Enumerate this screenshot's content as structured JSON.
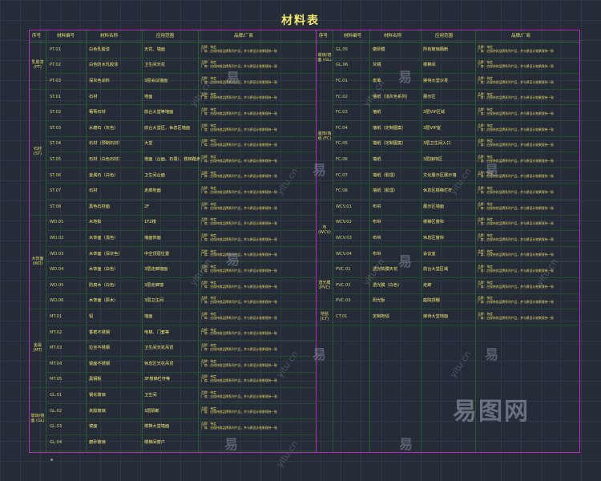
{
  "title": "材料表",
  "headers": {
    "no": "序号",
    "code": "材料编号",
    "name": "材料名称",
    "area": "应用范围",
    "brand": "品牌/厂商"
  },
  "left": {
    "categories": [
      {
        "label": "乳胶漆 (PT)",
        "top": 0
      },
      {
        "label": "石材 (ST)",
        "top": 1
      },
      {
        "label": "木饰面 (WD)",
        "top": 2
      },
      {
        "label": "金属 (MT)",
        "top": 3
      },
      {
        "label": "玻璃/镜面 (GL)",
        "top": 4
      }
    ],
    "rows": [
      {
        "code": "PT.01",
        "name": "白色乳胶漆",
        "area": "天花、墙面",
        "note1": "品牌：待定",
        "note2": "厂商：应保持其品牌系列产品，并与原设计效果保持一致"
      },
      {
        "code": "PT.02",
        "name": "白色防水乳胶漆",
        "area": "卫生间天花",
        "note1": "品牌：待定",
        "note2": "厂商：应保持其品牌系列产品，并与原设计效果保持一致"
      },
      {
        "code": "PT.03",
        "name": "深灰色涂料",
        "area": "3层会议墙面",
        "note1": "品牌：待定",
        "note2": "厂商：应保持其品牌系列产品，并与原设计效果保持一致"
      },
      {
        "code": "ST.01",
        "name": "石材",
        "area": "地面",
        "note1": "品牌：待定",
        "note2": "厂商：应保持其品牌系列产品，并与原设计效果保持一致"
      },
      {
        "code": "ST.02",
        "name": "葡萄石材",
        "area": "前台大堂等墙面",
        "note1": "品牌：待定",
        "note2": "厂商：应保持其品牌系列产品，并与原设计效果保持一致"
      },
      {
        "code": "ST.03",
        "name": "水磨石（灰色）",
        "area": "前台大堂区、休息区墙面",
        "note1": "品牌：待定",
        "note2": "厂商：应保持其品牌系列产品，并与原设计效果保持一致"
      },
      {
        "code": "ST.04",
        "name": "石材（预制石材）",
        "area": "大堂",
        "note1": "品牌：待定",
        "note2": "厂商：应保持其品牌系列产品，并与原设计效果保持一致"
      },
      {
        "code": "ST.05",
        "name": "石材（白色石材）",
        "area": "地面（台面、石膏）、楼梯踏步",
        "note1": "品牌：待定",
        "note2": "厂商：应保持其品牌系列产品，并与原设计效果保持一致"
      },
      {
        "code": "ST.06",
        "name": "金属石（白色）",
        "area": "卫生间台面",
        "note1": "品牌：待定",
        "note2": "厂商：应保持其品牌系列产品，并与原设计效果保持一致"
      },
      {
        "code": "ST.07",
        "name": "石材",
        "area": "走廊地面",
        "note1": "品牌：待定",
        "note2": "厂商：应保持其品牌系列产品，并与原设计效果保持一致"
      },
      {
        "code": "ST.08",
        "name": "黑色石材面",
        "area": "2F",
        "note1": "品牌：待定",
        "note2": "厂商：应保持其品牌系列产品，并与原设计效果保持一致"
      },
      {
        "code": "WD.01",
        "name": "木地板",
        "area": "1F2楼",
        "note1": "品牌：待定",
        "note2": "厂商：应保持其品牌系列产品，并与原设计效果保持一致"
      },
      {
        "code": "WD.02",
        "name": "木饰面（浅色）",
        "area": "墙面饰面",
        "note1": "品牌：待定",
        "note2": "厂商：应保持其品牌系列产品，并与原设计效果保持一致"
      },
      {
        "code": "WD.03",
        "name": "木饰面（深灰色）",
        "area": "中空顶层位置",
        "note1": "品牌：待定",
        "note2": "厂商：应保持其品牌系列产品，并与原设计效果保持一致"
      },
      {
        "code": "WD.04",
        "name": "木饰面（白色）",
        "area": "3层走廊墙面",
        "note1": "品牌：待定",
        "note2": "厂商：应保持其品牌系列产品，并与原设计效果保持一致"
      },
      {
        "code": "WD.05",
        "name": "防腐木（白色）",
        "area": "3层走廊墙",
        "note1": "品牌：待定",
        "note2": "厂商：应保持其品牌系列产品，并与原设计效果保持一致"
      },
      {
        "code": "WD.06",
        "name": "木饰面（原木）",
        "area": "3层卫生间",
        "note1": "品牌：待定",
        "note2": "厂商：应保持其品牌系列产品，并与原设计效果保持一致"
      },
      {
        "code": "MT.01",
        "name": "铝",
        "area": "墙面",
        "note1": "品牌：待定",
        "note2": "厂商：应保持其品牌系列产品，并与原设计效果保持一致"
      },
      {
        "code": "MT.02",
        "name": "香槟不锈钢",
        "area": "电梯、门套等",
        "note1": "品牌：待定",
        "note2": "厂商：应保持其品牌系列产品，并与原设计效果保持一致"
      },
      {
        "code": "MT.03",
        "name": "拉丝不锈钢",
        "area": "卫生间天花吊顶",
        "note1": "品牌：待定",
        "note2": "厂商：应保持其品牌系列产品，并与原设计效果保持一致"
      },
      {
        "code": "MT.04",
        "name": "镜面不锈钢",
        "area": "休息区天花吊顶",
        "note1": "品牌：待定",
        "note2": "厂商：应保持其品牌系列产品，并与原设计效果保持一致"
      },
      {
        "code": "MT.05",
        "name": "黑钢板",
        "area": "3F楼梯栏杆等",
        "note1": "品牌：待定",
        "note2": "厂商：应保持其品牌系列产品，并与原设计效果保持一致"
      },
      {
        "code": "GL.01",
        "name": "钢化玻璃",
        "area": "卫生间",
        "note1": "品牌：待定",
        "note2": "厂商：应保持其品牌系列产品，并与原设计效果保持一致"
      },
      {
        "code": "GL.02",
        "name": "夹胶玻璃",
        "area": "3层隔断",
        "note1": "品牌：待定",
        "note2": "厂商：应保持其品牌系列产品，并与原设计效果保持一致"
      },
      {
        "code": "GL.03",
        "name": "镜面",
        "area": "楼梯大堂墙面",
        "note1": "品牌：待定",
        "note2": "厂商：应保持其品牌系列产品，并与原设计效果保持一致"
      },
      {
        "code": "GL.04",
        "name": "磨砂玻璃",
        "area": "楼梯间窗户",
        "note1": "",
        "note2": ""
      }
    ]
  },
  "right": {
    "categories": [
      {
        "label": "玻璃/镜面 (GL)"
      },
      {
        "label": "装饰/墙纸 (FC)"
      },
      {
        "label": "布 (WCV)"
      },
      {
        "label": "透光膜 (PVC)"
      },
      {
        "label": "地毯 (CT)"
      }
    ],
    "rows": [
      {
        "code": "GL.05",
        "name": "磨砂膜",
        "area": "所有玻璃隔断",
        "note1": "品牌：待定",
        "note2": "厂商：应保持其品牌系列产品，并与原设计效果保持一致"
      },
      {
        "code": "GL.06",
        "name": "灰镜",
        "area": "楼梯间",
        "note1": "品牌：待定",
        "note2": "厂商：应保持其品牌系列产品，并与原设计效果保持一致"
      },
      {
        "code": "FC.01",
        "name": "皮革",
        "area": "接待大堂沙发",
        "note1": "品牌：待定",
        "note2": "厂商：应保持其品牌系列产品，并与原设计效果保持一致"
      },
      {
        "code": "FC.02",
        "name": "墙纸（浅灰色系列）",
        "area": "展示区",
        "note1": "品牌：待定",
        "note2": "厂商：应保持其品牌系列产品，并与原设计效果保持一致"
      },
      {
        "code": "FC.03",
        "name": "墙纸",
        "area": "3层VIP区域",
        "note1": "品牌：待定",
        "note2": "厂商：应保持其品牌系列产品，并与原设计效果保持一致"
      },
      {
        "code": "FC.04",
        "name": "墙纸（定制图案）",
        "area": "3层VIP室",
        "note1": "品牌：待定",
        "note2": "厂商：应保持其品牌系列产品，并与原设计效果保持一致"
      },
      {
        "code": "FC.05",
        "name": "墙纸（定制图案）",
        "area": "3层卫生间入口",
        "note1": "品牌：待定",
        "note2": "厂商：应保持其品牌系列产品，并与原设计效果保持一致"
      },
      {
        "code": "FC.06",
        "name": "墙纸",
        "area": "3层接待区",
        "note1": "品牌：待定",
        "note2": "厂商：应保持其品牌系列产品，并与原设计效果保持一致"
      },
      {
        "code": "FC.07",
        "name": "墙纸（肌理）",
        "area": "文化展示区展示墙",
        "note1": "品牌：待定",
        "note2": "厂商：应保持其品牌系列产品，并与原设计效果保持一致"
      },
      {
        "code": "FC.08",
        "name": "墙纸（肌理）",
        "area": "休息区楼梯栏杆",
        "note1": "品牌：待定",
        "note2": "厂商：应保持其品牌系列产品，并与原设计效果保持一致"
      },
      {
        "code": "WCV.01",
        "name": "布帘",
        "area": "展示区墙面",
        "note1": "品牌：待定",
        "note2": "厂商：应保持其品牌系列产品，并与原设计效果保持一致"
      },
      {
        "code": "WCV.02",
        "name": "布帘",
        "area": "楼梯区窗帘",
        "note1": "品牌：待定",
        "note2": "厂商：应保持其品牌系列产品，并与原设计效果保持一致"
      },
      {
        "code": "WCV.03",
        "name": "布帘",
        "area": "休息区窗帘",
        "note1": "品牌：待定",
        "note2": "厂商：应保持其品牌系列产品，并与原设计效果保持一致"
      },
      {
        "code": "WCV.04",
        "name": "布帘",
        "area": "会议室",
        "note1": "品牌：待定",
        "note2": "厂商：应保持其品牌系列产品，并与原设计效果保持一致"
      },
      {
        "code": "PVC.01",
        "name": "透光软膜天花",
        "area": "前台大堂区域",
        "note1": "品牌：待定",
        "note2": "厂商：应保持其品牌系列产品，并与原设计效果保持一致"
      },
      {
        "code": "PVC.02",
        "name": "透光膜（白色）",
        "area": "走廊",
        "note1": "品牌：待定",
        "note2": "厂商：应保持其品牌系列产品，并与原设计效果保持一致"
      },
      {
        "code": "PVC.03",
        "name": "阳光板",
        "area": "庭院顶棚",
        "note1": "品牌：待定",
        "note2": "厂商：应保持其品牌系列产品，并与原设计效果保持一致"
      },
      {
        "code": "CT.01",
        "name": "定制地毯",
        "area": "接待大堂地面",
        "note1": "品牌：待定",
        "note2": "厂商：应保持其品牌系列产品，并与原设计效果保持一致"
      }
    ]
  },
  "watermarks": [
    "易",
    "yitu.cn",
    "易图网"
  ]
}
